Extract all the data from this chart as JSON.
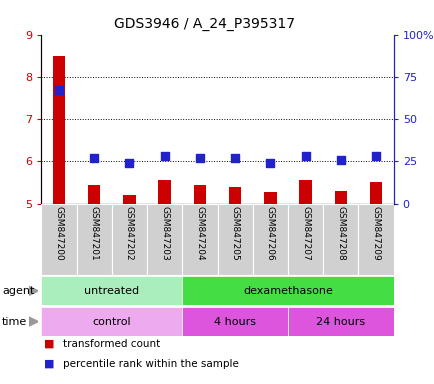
{
  "title": "GDS3946 / A_24_P395317",
  "samples": [
    "GSM847200",
    "GSM847201",
    "GSM847202",
    "GSM847203",
    "GSM847204",
    "GSM847205",
    "GSM847206",
    "GSM847207",
    "GSM847208",
    "GSM847209"
  ],
  "transformed_count": [
    8.5,
    5.45,
    5.2,
    5.55,
    5.45,
    5.38,
    5.28,
    5.55,
    5.3,
    5.52
  ],
  "percentile_rank": [
    67,
    27,
    24,
    28,
    27,
    27,
    24,
    28,
    26,
    28
  ],
  "ylim_left": [
    5,
    9
  ],
  "ylim_right": [
    0,
    100
  ],
  "yticks_left": [
    5,
    6,
    7,
    8,
    9
  ],
  "yticks_right": [
    0,
    25,
    50,
    75,
    100
  ],
  "ytick_labels_right": [
    "0",
    "25",
    "50",
    "75",
    "100%"
  ],
  "bar_color": "#cc0000",
  "dot_color": "#2222cc",
  "grid_color": "#000000",
  "agent_labels": [
    {
      "label": "untreated",
      "start": 0,
      "end": 4,
      "color": "#aaeebb"
    },
    {
      "label": "dexamethasone",
      "start": 4,
      "end": 10,
      "color": "#44dd44"
    }
  ],
  "time_labels": [
    {
      "label": "control",
      "start": 0,
      "end": 4,
      "color": "#eeaaee"
    },
    {
      "label": "4 hours",
      "start": 4,
      "end": 7,
      "color": "#dd55dd"
    },
    {
      "label": "24 hours",
      "start": 7,
      "end": 10,
      "color": "#dd55dd"
    }
  ],
  "legend_items": [
    {
      "color": "#cc0000",
      "label": "transformed count"
    },
    {
      "color": "#2222cc",
      "label": "percentile rank within the sample"
    }
  ],
  "left_tick_color": "#cc0000",
  "right_tick_color": "#2222cc",
  "bar_width": 0.35,
  "dot_size": 30,
  "xlabel_bg": "#cccccc",
  "agent_arrow_color": "#888888"
}
